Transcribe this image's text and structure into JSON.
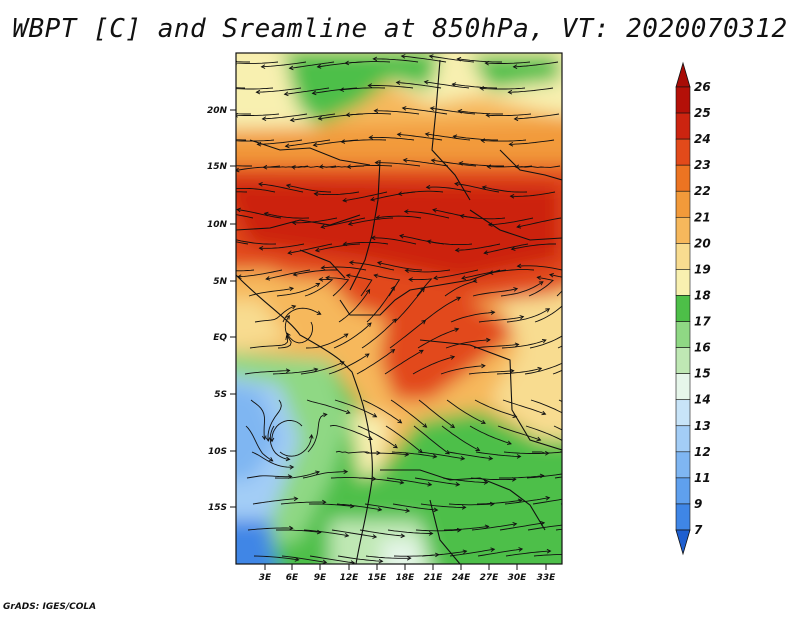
{
  "title": "WBPT [C] and Sreamline at 850hPa, VT: 2020070312",
  "credit": "GrADS: IGES/COLA",
  "map": {
    "variable": "WBPT",
    "units": "C",
    "level": "850hPa",
    "valid_time": "2020070312",
    "lon_ticks": [
      "3E",
      "6E",
      "9E",
      "12E",
      "15E",
      "18E",
      "21E",
      "24E",
      "27E",
      "30E",
      "33E"
    ],
    "lat_ticks": [
      "20N",
      "15N",
      "10N",
      "5N",
      "EQ",
      "5S",
      "10S",
      "15S"
    ]
  },
  "colorbar": {
    "levels": [
      "7",
      "9",
      "11",
      "12",
      "13",
      "14",
      "15",
      "16",
      "17",
      "18",
      "19",
      "20",
      "21",
      "22",
      "23",
      "24",
      "25",
      "26"
    ],
    "colors": [
      "#2b6fd6",
      "#3f86e6",
      "#5fa0ee",
      "#7fb6f2",
      "#a3cdf6",
      "#c8e4f8",
      "#e6f6ea",
      "#bfe8b4",
      "#8fd884",
      "#4dbf48",
      "#f8f0b0",
      "#f8dc90",
      "#f6b85c",
      "#f29a3a",
      "#ec7422",
      "#e24a1a",
      "#cc2410",
      "#b41008"
    ],
    "extend_low_color": "#1e5fd0",
    "extend_high_color": "#a80c06"
  }
}
